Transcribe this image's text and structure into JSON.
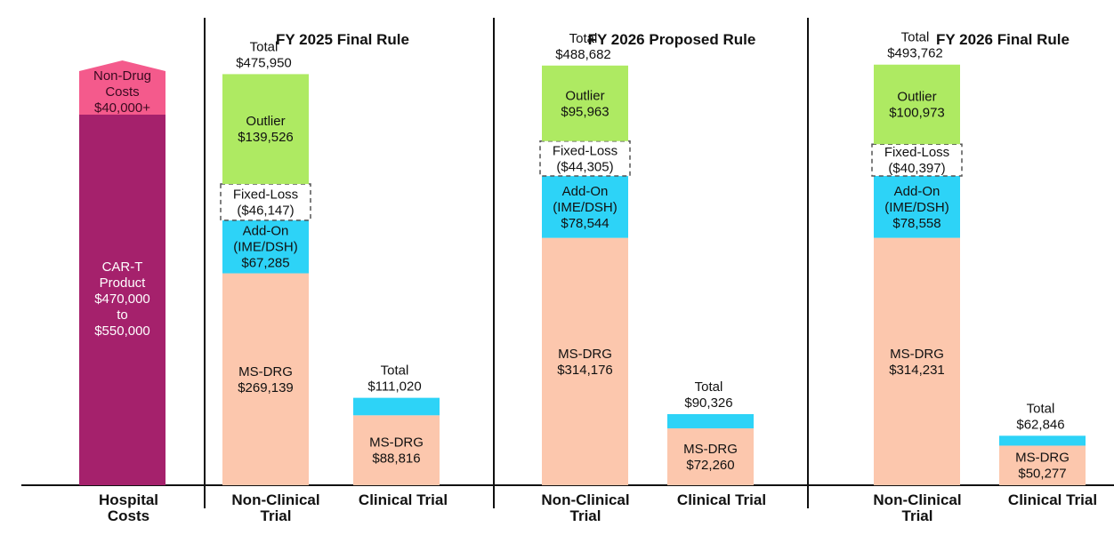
{
  "chart_data": {
    "type": "bar",
    "stacked": true,
    "hospital_costs": {
      "category": "Hospital Costs",
      "segments": [
        {
          "key": "car_t",
          "label": [
            "CAR-T",
            "Product",
            "$470,000",
            "to",
            "$550,000"
          ],
          "value_low": 470000,
          "value_high": 550000,
          "color": "#A5216C"
        },
        {
          "key": "non_drug",
          "label": [
            "Non-Drug",
            "Costs",
            "$40,000+"
          ],
          "value_low": 40000,
          "color": "#F45A8C"
        }
      ]
    },
    "panels": [
      {
        "title": "FY 2025 Final Rule",
        "bars": [
          {
            "category": "Non-Clinical Trial",
            "total_label": [
              "Total",
              "$475,950"
            ],
            "total": 475950,
            "segments": [
              {
                "name": "MS-DRG",
                "value": 269139,
                "label": [
                  "MS-DRG",
                  "$269,139"
                ]
              },
              {
                "name": "Add-On (IME/DSH)",
                "value": 67285,
                "label": [
                  "Add-On",
                  "(IME/DSH)",
                  "$67,285"
                ]
              },
              {
                "name": "Fixed-Loss",
                "value": 46147,
                "label": [
                  "Fixed-Loss",
                  "($46,147)"
                ]
              },
              {
                "name": "Outlier",
                "value": 139526,
                "label": [
                  "Outlier",
                  "$139,526"
                ]
              }
            ]
          },
          {
            "category": "Clinical Trial",
            "total_label": [
              "Total",
              "$111,020"
            ],
            "total": 111020,
            "segments": [
              {
                "name": "MS-DRG",
                "value": 88816,
                "label": [
                  "MS-DRG",
                  "$88,816"
                ]
              },
              {
                "name": "Add-On (IME/DSH)",
                "value": 22204,
                "label": []
              }
            ]
          }
        ]
      },
      {
        "title": "FY 2026 Proposed Rule",
        "bars": [
          {
            "category": "Non-Clinical Trial",
            "total_label": [
              "Total",
              "$488,682"
            ],
            "total": 488682,
            "segments": [
              {
                "name": "MS-DRG",
                "value": 314176,
                "label": [
                  "MS-DRG",
                  "$314,176"
                ]
              },
              {
                "name": "Add-On (IME/DSH)",
                "value": 78544,
                "label": [
                  "Add-On",
                  "(IME/DSH)",
                  "$78,544"
                ]
              },
              {
                "name": "Fixed-Loss",
                "value": 44305,
                "label": [
                  "Fixed-Loss",
                  "($44,305)"
                ]
              },
              {
                "name": "Outlier",
                "value": 95963,
                "label": [
                  "Outlier",
                  "$95,963"
                ]
              }
            ]
          },
          {
            "category": "Clinical Trial",
            "total_label": [
              "Total",
              "$90,326"
            ],
            "total": 90326,
            "segments": [
              {
                "name": "MS-DRG",
                "value": 72260,
                "label": [
                  "MS-DRG",
                  "$72,260"
                ]
              },
              {
                "name": "Add-On (IME/DSH)",
                "value": 18066,
                "label": []
              }
            ]
          }
        ]
      },
      {
        "title": "FY 2026 Final Rule",
        "bars": [
          {
            "category": "Non-Clinical Trial",
            "total_label": [
              "Total",
              "$493,762"
            ],
            "total": 493762,
            "segments": [
              {
                "name": "MS-DRG",
                "value": 314231,
                "label": [
                  "MS-DRG",
                  "$314,231"
                ]
              },
              {
                "name": "Add-On (IME/DSH)",
                "value": 78558,
                "label": [
                  "Add-On",
                  "(IME/DSH)",
                  "$78,558"
                ]
              },
              {
                "name": "Fixed-Loss",
                "value": 40397,
                "label": [
                  "Fixed-Loss",
                  "($40,397)"
                ]
              },
              {
                "name": "Outlier",
                "value": 100973,
                "label": [
                  "Outlier",
                  "$100,973"
                ]
              }
            ]
          },
          {
            "category": "Clinical Trial",
            "total_label": [
              "Total",
              "$62,846"
            ],
            "total": 62846,
            "segments": [
              {
                "name": "MS-DRG",
                "value": 50277,
                "label": [
                  "MS-DRG",
                  "$50,277"
                ]
              },
              {
                "name": "Add-On (IME/DSH)",
                "value": 12569,
                "label": []
              }
            ]
          }
        ]
      }
    ],
    "colors": {
      "MS-DRG": "#FCC7AD",
      "Add-On (IME/DSH)": "#2DD3F7",
      "Fixed-Loss": "#FFFFFF",
      "Outlier": "#AEEA62",
      "axis": "#111111"
    }
  }
}
